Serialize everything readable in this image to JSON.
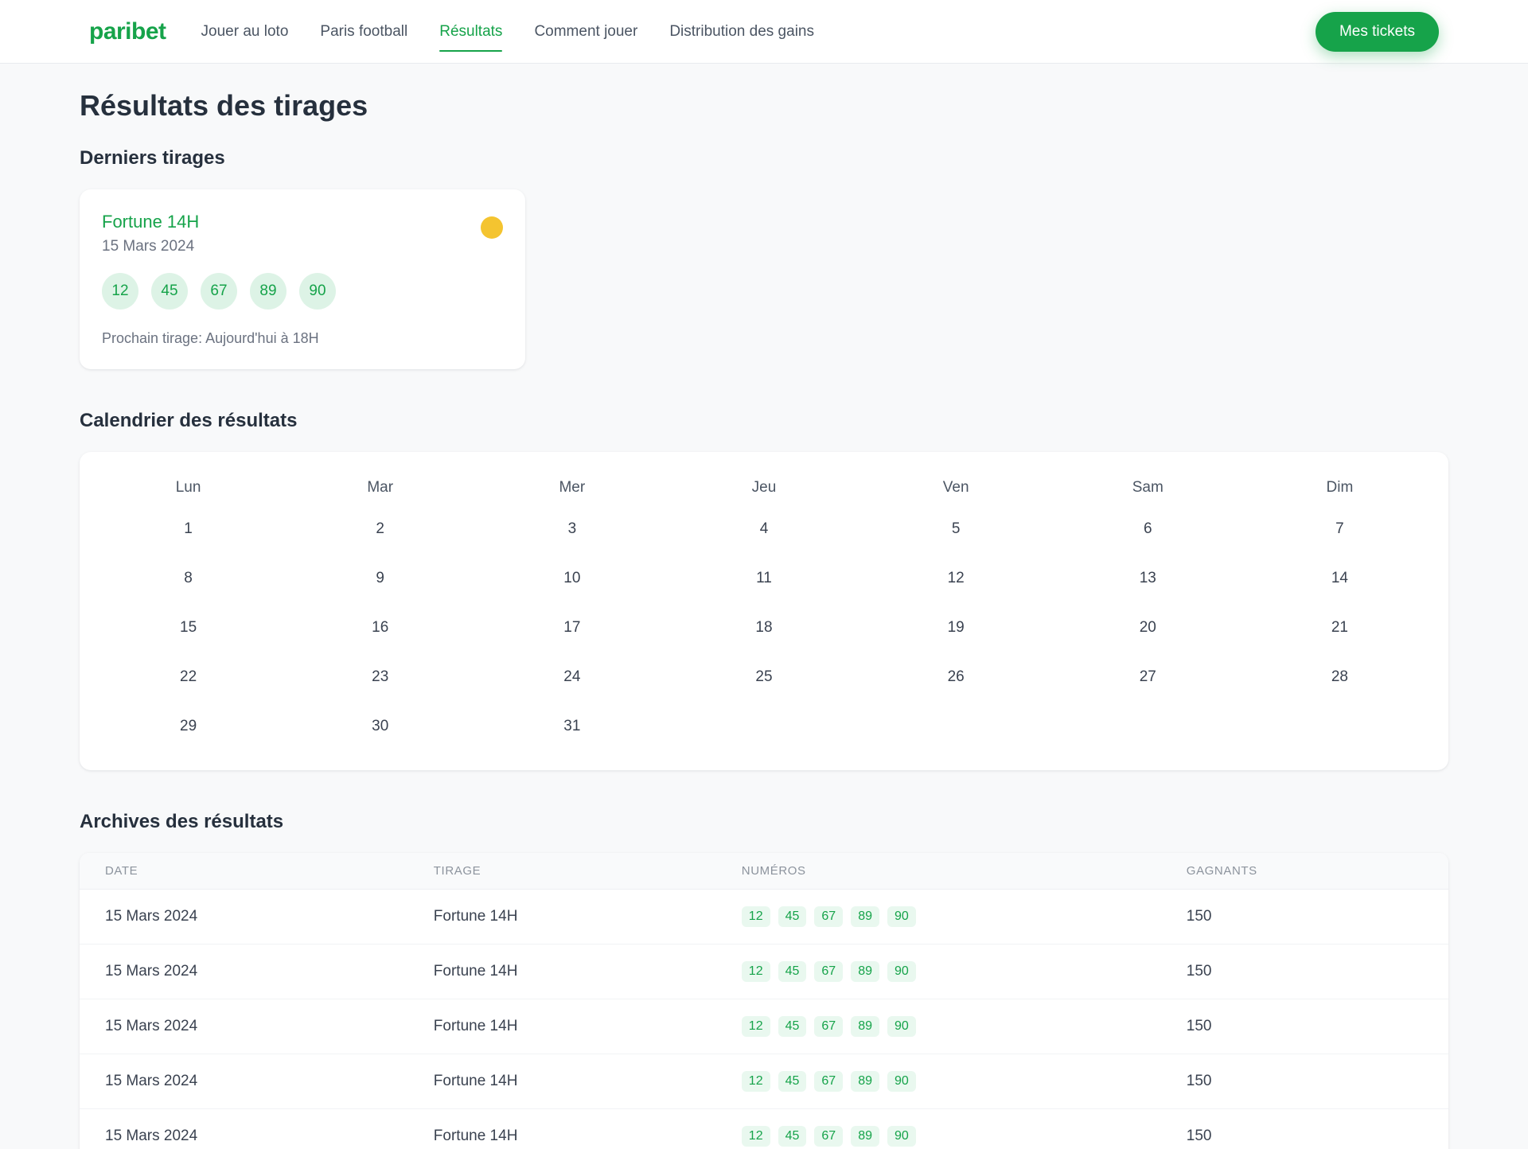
{
  "header": {
    "logo": "paribet",
    "nav": [
      {
        "label": "Jouer au loto",
        "active": false
      },
      {
        "label": "Paris football",
        "active": false
      },
      {
        "label": "Résultats",
        "active": true
      },
      {
        "label": "Comment jouer",
        "active": false
      },
      {
        "label": "Distribution des gains",
        "active": false
      }
    ],
    "cta": "Mes tickets"
  },
  "page": {
    "title": "Résultats des tirages"
  },
  "latest": {
    "heading": "Derniers tirages",
    "card": {
      "title": "Fortune 14H",
      "date": "15 Mars 2024",
      "numbers": [
        "12",
        "45",
        "67",
        "89",
        "90"
      ],
      "next_draw": "Prochain tirage: Aujourd'hui à 18H"
    }
  },
  "calendar": {
    "heading": "Calendrier des résultats",
    "day_headers": [
      "Lun",
      "Mar",
      "Mer",
      "Jeu",
      "Ven",
      "Sam",
      "Dim"
    ],
    "weeks": [
      [
        "1",
        "2",
        "3",
        "4",
        "5",
        "6",
        "7"
      ],
      [
        "8",
        "9",
        "10",
        "11",
        "12",
        "13",
        "14"
      ],
      [
        "15",
        "16",
        "17",
        "18",
        "19",
        "20",
        "21"
      ],
      [
        "22",
        "23",
        "24",
        "25",
        "26",
        "27",
        "28"
      ],
      [
        "29",
        "30",
        "31",
        "",
        "",
        "",
        ""
      ]
    ]
  },
  "archives": {
    "heading": "Archives des résultats",
    "columns": [
      "DATE",
      "TIRAGE",
      "NUMÉROS",
      "GAGNANTS"
    ],
    "rows": [
      {
        "date": "15 Mars 2024",
        "tirage": "Fortune 14H",
        "numbers": [
          "12",
          "45",
          "67",
          "89",
          "90"
        ],
        "gagnants": "150"
      },
      {
        "date": "15 Mars 2024",
        "tirage": "Fortune 14H",
        "numbers": [
          "12",
          "45",
          "67",
          "89",
          "90"
        ],
        "gagnants": "150"
      },
      {
        "date": "15 Mars 2024",
        "tirage": "Fortune 14H",
        "numbers": [
          "12",
          "45",
          "67",
          "89",
          "90"
        ],
        "gagnants": "150"
      },
      {
        "date": "15 Mars 2024",
        "tirage": "Fortune 14H",
        "numbers": [
          "12",
          "45",
          "67",
          "89",
          "90"
        ],
        "gagnants": "150"
      },
      {
        "date": "15 Mars 2024",
        "tirage": "Fortune 14H",
        "numbers": [
          "12",
          "45",
          "67",
          "89",
          "90"
        ],
        "gagnants": "150"
      }
    ]
  },
  "colors": {
    "primary": "#16a34a",
    "primary-soft": "#e9f8ef",
    "ball-bg": "#ddf3e6",
    "status-yellow": "#f4c430",
    "page-bg": "#f8f9fa",
    "heading": "#26303d",
    "muted": "#6b7280",
    "nav": "#4b5563",
    "cell": "#3a4250",
    "table-header": "#8c939d",
    "border": "#e9ebee"
  }
}
